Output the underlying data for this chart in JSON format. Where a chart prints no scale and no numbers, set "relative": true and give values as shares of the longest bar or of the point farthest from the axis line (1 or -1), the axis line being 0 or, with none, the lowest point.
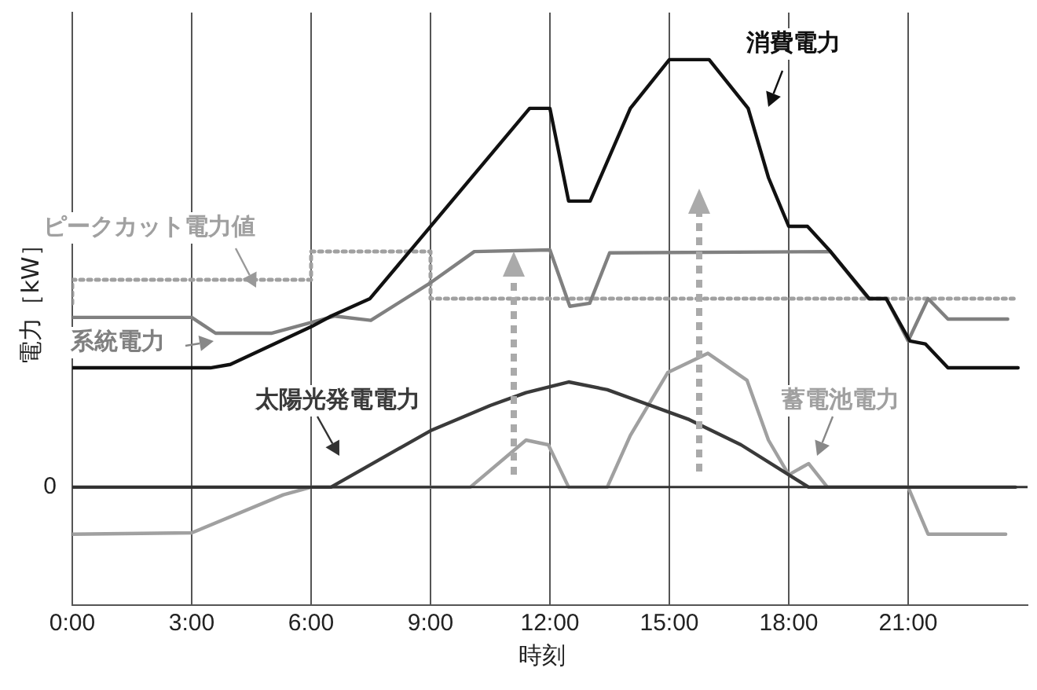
{
  "chart_data": {
    "type": "line",
    "xlabel": "時刻",
    "ylabel": "電力［kW］",
    "relative": true,
    "annotations": [
      "0"
    ],
    "xlim": [
      0,
      24
    ],
    "xticks": [
      {
        "value": 0,
        "label": "0:00"
      },
      {
        "value": 3,
        "label": "3:00"
      },
      {
        "value": 6,
        "label": "6:00"
      },
      {
        "value": 9,
        "label": "9:00"
      },
      {
        "value": 12,
        "label": "12:00"
      },
      {
        "value": 15,
        "label": "15:00"
      },
      {
        "value": 18,
        "label": "18:00"
      },
      {
        "value": 21,
        "label": "21:00"
      }
    ],
    "grid": "x",
    "marker": "none",
    "line_style": "solid",
    "series": [
      {
        "name": "消費電力",
        "color": "#111111",
        "x": [
          0,
          3,
          3.47,
          3.97,
          6,
          6.5,
          7.48,
          11.49,
          12,
          12.47,
          13.01,
          14.02,
          15,
          16,
          16.98,
          17.49,
          18,
          18.47,
          19.05,
          20.02,
          20.45,
          21.04,
          21.43,
          22,
          23.76
        ],
        "values": [
          0.279,
          0.279,
          0.279,
          0.287,
          0.375,
          0.4,
          0.441,
          0.886,
          0.886,
          0.669,
          0.669,
          0.886,
          1,
          1,
          0.886,
          0.724,
          0.61,
          0.61,
          0.551,
          0.441,
          0.441,
          0.342,
          0.335,
          0.279,
          0.279
        ]
      },
      {
        "name": "系統電力",
        "color": "#808080",
        "x": [
          0,
          3,
          3.6,
          5,
          6.6,
          7.5,
          9,
          10.1,
          12,
          12.5,
          13,
          13.5,
          19.05,
          20,
          20.45,
          21,
          21.5,
          22,
          23.5
        ],
        "values": [
          0.397,
          0.397,
          0.36,
          0.36,
          0.4,
          0.39,
          0.478,
          0.551,
          0.555,
          0.423,
          0.43,
          0.548,
          0.551,
          0.441,
          0.441,
          0.342,
          0.441,
          0.393,
          0.393
        ]
      },
      {
        "name": "太陽光発電電力",
        "color": "#3a3a3a",
        "x": [
          0,
          6.5,
          9,
          10.5,
          11.4,
          12.47,
          13.44,
          15.5,
          16.8,
          18,
          18.5,
          23.7
        ],
        "values": [
          0,
          0,
          0.132,
          0.191,
          0.221,
          0.246,
          0.228,
          0.158,
          0.099,
          0.029,
          0,
          0
        ]
      },
      {
        "name": "蓄電池電力",
        "color": "#a0a0a0",
        "x": [
          0,
          3,
          5.3,
          6,
          10,
          11.4,
          11.96,
          12.47,
          13.44,
          14.02,
          14.96,
          15.97,
          16.95,
          17.49,
          18,
          18.5,
          18.97,
          21,
          21.5,
          23.45
        ],
        "values": [
          -0.11,
          -0.107,
          -0.018,
          0,
          0,
          0.11,
          0.099,
          0,
          0,
          0.121,
          0.268,
          0.313,
          0.25,
          0.11,
          0.029,
          0.055,
          0,
          0,
          -0.11,
          -0.11
        ]
      },
      {
        "name": "ピークカット電力値",
        "color": "#a0a0a0",
        "type": "step",
        "line_style": "dotted",
        "x": [
          0,
          6,
          9,
          21,
          23.7
        ],
        "values": [
          0.43,
          0.485,
          0.551,
          0.441,
          0.441
        ]
      }
    ]
  }
}
